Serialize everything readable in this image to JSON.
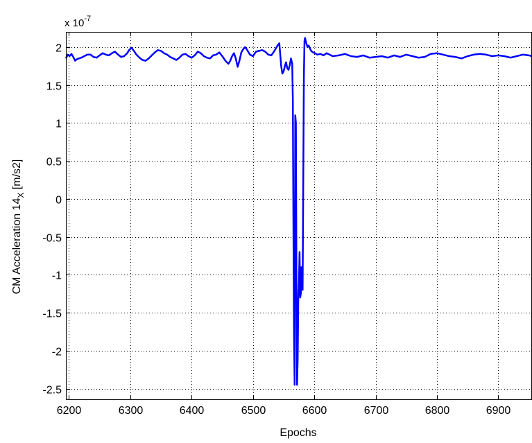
{
  "chart_data": {
    "type": "line",
    "title": "",
    "xlabel": "Epochs",
    "ylabel_main": "CM Acceleration 14",
    "ylabel_sub": "X",
    "ylabel_unit": " [m/s2]",
    "y_multiplier_base": "x 10",
    "y_multiplier_exp": "-7",
    "xlim": [
      6195,
      6955
    ],
    "ylim": [
      -2.65,
      2.2
    ],
    "grid": true,
    "x_ticks": [
      6200,
      6300,
      6400,
      6500,
      6600,
      6700,
      6800,
      6900
    ],
    "y_ticks": [
      2,
      1.5,
      1,
      0.5,
      0,
      -0.5,
      -1,
      -1.5,
      -2,
      -2.5
    ],
    "line_color": "#0000ff",
    "series": [
      {
        "x": [
          6195,
          6198,
          6201,
          6204,
          6207,
          6210,
          6213,
          6216,
          6220,
          6225,
          6230,
          6235,
          6240,
          6245,
          6250,
          6255,
          6260,
          6265,
          6270,
          6275,
          6280,
          6285,
          6290,
          6295,
          6298,
          6302,
          6306,
          6310,
          6315,
          6320,
          6325,
          6330,
          6335,
          6340,
          6345,
          6350,
          6355,
          6360,
          6365,
          6370,
          6375,
          6380,
          6385,
          6390,
          6395,
          6400,
          6405,
          6410,
          6415,
          6420,
          6425,
          6430,
          6435,
          6440,
          6445,
          6450,
          6455,
          6460,
          6463,
          6466,
          6469,
          6472,
          6475,
          6478,
          6481,
          6484,
          6487,
          6490,
          6495,
          6500,
          6505,
          6510,
          6515,
          6520,
          6525,
          6530,
          6535,
          6540,
          6543,
          6546,
          6548,
          6550,
          6552,
          6554,
          6556,
          6558,
          6560,
          6562,
          6564,
          6565,
          6566,
          6567,
          6568,
          6569,
          6570,
          6571,
          6572,
          6573,
          6574,
          6575,
          6576,
          6577,
          6578,
          6579,
          6580,
          6581,
          6582,
          6583,
          6584,
          6585,
          6587,
          6589,
          6591,
          6593,
          6595,
          6598,
          6601,
          6605,
          6610,
          6615,
          6620,
          6625,
          6630,
          6640,
          6650,
          6660,
          6670,
          6680,
          6690,
          6700,
          6710,
          6720,
          6730,
          6740,
          6750,
          6760,
          6770,
          6780,
          6790,
          6800,
          6810,
          6820,
          6830,
          6840,
          6850,
          6860,
          6870,
          6880,
          6890,
          6900,
          6910,
          6920,
          6930,
          6940,
          6950,
          6955
        ],
        "y": [
          1.85,
          1.9,
          1.88,
          1.91,
          1.87,
          1.82,
          1.84,
          1.85,
          1.86,
          1.88,
          1.9,
          1.9,
          1.87,
          1.86,
          1.89,
          1.92,
          1.9,
          1.89,
          1.92,
          1.94,
          1.9,
          1.87,
          1.88,
          1.92,
          1.96,
          1.99,
          1.95,
          1.9,
          1.86,
          1.83,
          1.82,
          1.85,
          1.89,
          1.93,
          1.96,
          1.95,
          1.92,
          1.9,
          1.87,
          1.85,
          1.83,
          1.86,
          1.9,
          1.91,
          1.88,
          1.86,
          1.89,
          1.94,
          1.92,
          1.88,
          1.86,
          1.85,
          1.89,
          1.9,
          1.93,
          1.88,
          1.82,
          1.78,
          1.82,
          1.88,
          1.92,
          1.85,
          1.74,
          1.82,
          1.93,
          1.97,
          2.0,
          1.97,
          1.9,
          1.88,
          1.94,
          1.95,
          1.96,
          1.94,
          1.9,
          1.89,
          1.95,
          2.02,
          2.05,
          1.75,
          1.65,
          1.68,
          1.75,
          1.8,
          1.72,
          1.7,
          1.76,
          1.85,
          1.78,
          1.3,
          -0.3,
          -1.8,
          -2.45,
          1.1,
          1.0,
          -1.2,
          -2.45,
          -2.1,
          -1.3,
          -1.1,
          -0.7,
          -1.3,
          -1.25,
          -0.9,
          -1.05,
          -1.2,
          0.2,
          1.6,
          2.08,
          2.12,
          2.05,
          2.0,
          2.02,
          1.98,
          1.95,
          1.93,
          1.92,
          1.9,
          1.91,
          1.89,
          1.92,
          1.9,
          1.88,
          1.89,
          1.91,
          1.88,
          1.87,
          1.89,
          1.86,
          1.87,
          1.88,
          1.86,
          1.89,
          1.87,
          1.9,
          1.88,
          1.86,
          1.87,
          1.91,
          1.92,
          1.9,
          1.88,
          1.87,
          1.85,
          1.88,
          1.9,
          1.91,
          1.9,
          1.88,
          1.89,
          1.88,
          1.86,
          1.88,
          1.9,
          1.89,
          1.88
        ]
      }
    ]
  }
}
